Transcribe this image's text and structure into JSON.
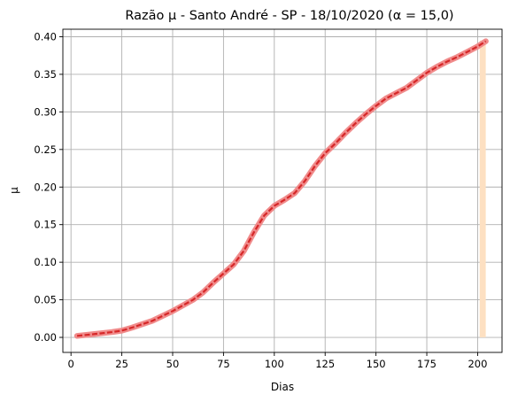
{
  "chart_data": {
    "type": "line",
    "title": "Razão μ - Santo André - SP - 18/10/2020 (α = 15,0)",
    "xlabel": "Dias",
    "ylabel": "μ",
    "xlim": [
      -4,
      212
    ],
    "ylim": [
      -0.02,
      0.41
    ],
    "grid": true,
    "xticks": [
      0,
      25,
      50,
      75,
      100,
      125,
      150,
      175,
      200
    ],
    "yticks": [
      0.0,
      0.05,
      0.1,
      0.15,
      0.2,
      0.25,
      0.3,
      0.35,
      0.4
    ],
    "yticklabels": [
      "0.00",
      "0.05",
      "0.10",
      "0.15",
      "0.20",
      "0.25",
      "0.30",
      "0.35",
      "0.40"
    ],
    "band": {
      "x_start": 201,
      "x_end": 204,
      "y_start": 0.0,
      "y_end": 0.395,
      "color": "#fde0c2"
    },
    "series": [
      {
        "color": "#d62728",
        "style": "dashed",
        "x": [
          3,
          10,
          20,
          25,
          30,
          40,
          50,
          60,
          65,
          70,
          75,
          80,
          85,
          90,
          95,
          100,
          105,
          110,
          115,
          120,
          125,
          130,
          135,
          140,
          145,
          150,
          155,
          160,
          165,
          170,
          175,
          180,
          185,
          190,
          195,
          200,
          204
        ],
        "y": [
          0.002,
          0.004,
          0.007,
          0.009,
          0.013,
          0.022,
          0.035,
          0.05,
          0.06,
          0.073,
          0.085,
          0.097,
          0.115,
          0.14,
          0.162,
          0.175,
          0.183,
          0.192,
          0.208,
          0.228,
          0.245,
          0.258,
          0.272,
          0.285,
          0.297,
          0.308,
          0.318,
          0.325,
          0.332,
          0.342,
          0.352,
          0.36,
          0.367,
          0.373,
          0.38,
          0.387,
          0.394
        ]
      }
    ]
  }
}
